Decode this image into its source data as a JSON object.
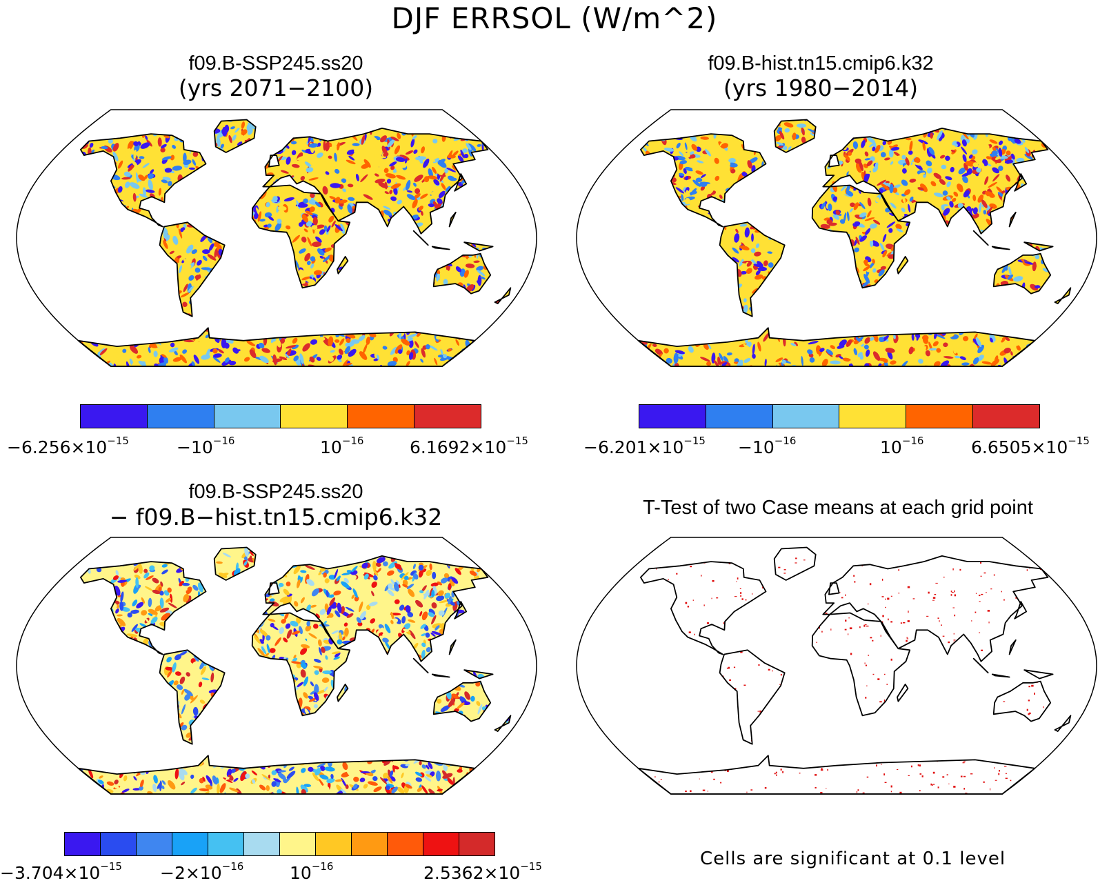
{
  "title": "DJF ERRSOL (W/m^2)",
  "panels": [
    {
      "title": "f09.B-SSP245.ss20",
      "subtitle": "(yrs 2071−2100)",
      "colorbar": {
        "colors": [
          "#3a18f0",
          "#2f7ff0",
          "#79c8ef",
          "#ffe135",
          "#ff6400",
          "#dc2b2b"
        ],
        "ticks": [
          {
            "base": "−6.256×10",
            "exp": "−15"
          },
          {
            "base": "−10",
            "exp": "−16"
          },
          {
            "base": "10",
            "exp": "−16"
          },
          {
            "base": "6.1692×10",
            "exp": "−15"
          }
        ]
      }
    },
    {
      "title": "f09.B-hist.tn15.cmip6.k32",
      "subtitle": "(yrs 1980−2014)",
      "colorbar": {
        "colors": [
          "#3a18f0",
          "#2f7ff0",
          "#79c8ef",
          "#ffe135",
          "#ff6400",
          "#dc2b2b"
        ],
        "ticks": [
          {
            "base": "−6.201×10",
            "exp": "−15"
          },
          {
            "base": "−10",
            "exp": "−16"
          },
          {
            "base": "10",
            "exp": "−16"
          },
          {
            "base": "6.6505×10",
            "exp": "−15"
          }
        ]
      }
    },
    {
      "title": "f09.B-SSP245.ss20",
      "subtitle": "− f09.B−hist.tn15.cmip6.k32",
      "colorbar": {
        "colors": [
          "#3a18f0",
          "#2a4cf0",
          "#3f86f0",
          "#19a2f7",
          "#45c1f2",
          "#a8dbf0",
          "#fff58a",
          "#ffc824",
          "#ff9a12",
          "#ff5a0a",
          "#ee1212",
          "#d42a2a"
        ],
        "ticks": [
          {
            "base": "−3.704×10",
            "exp": "−15"
          },
          {
            "base": "−2×10",
            "exp": "−16"
          },
          {
            "base": "10",
            "exp": "−16"
          },
          {
            "base": "2.5362×10",
            "exp": "−15"
          }
        ]
      }
    },
    {
      "title": "T-Test of two Case means at each grid point",
      "note": "Cells are significant at 0.1 level"
    }
  ]
}
